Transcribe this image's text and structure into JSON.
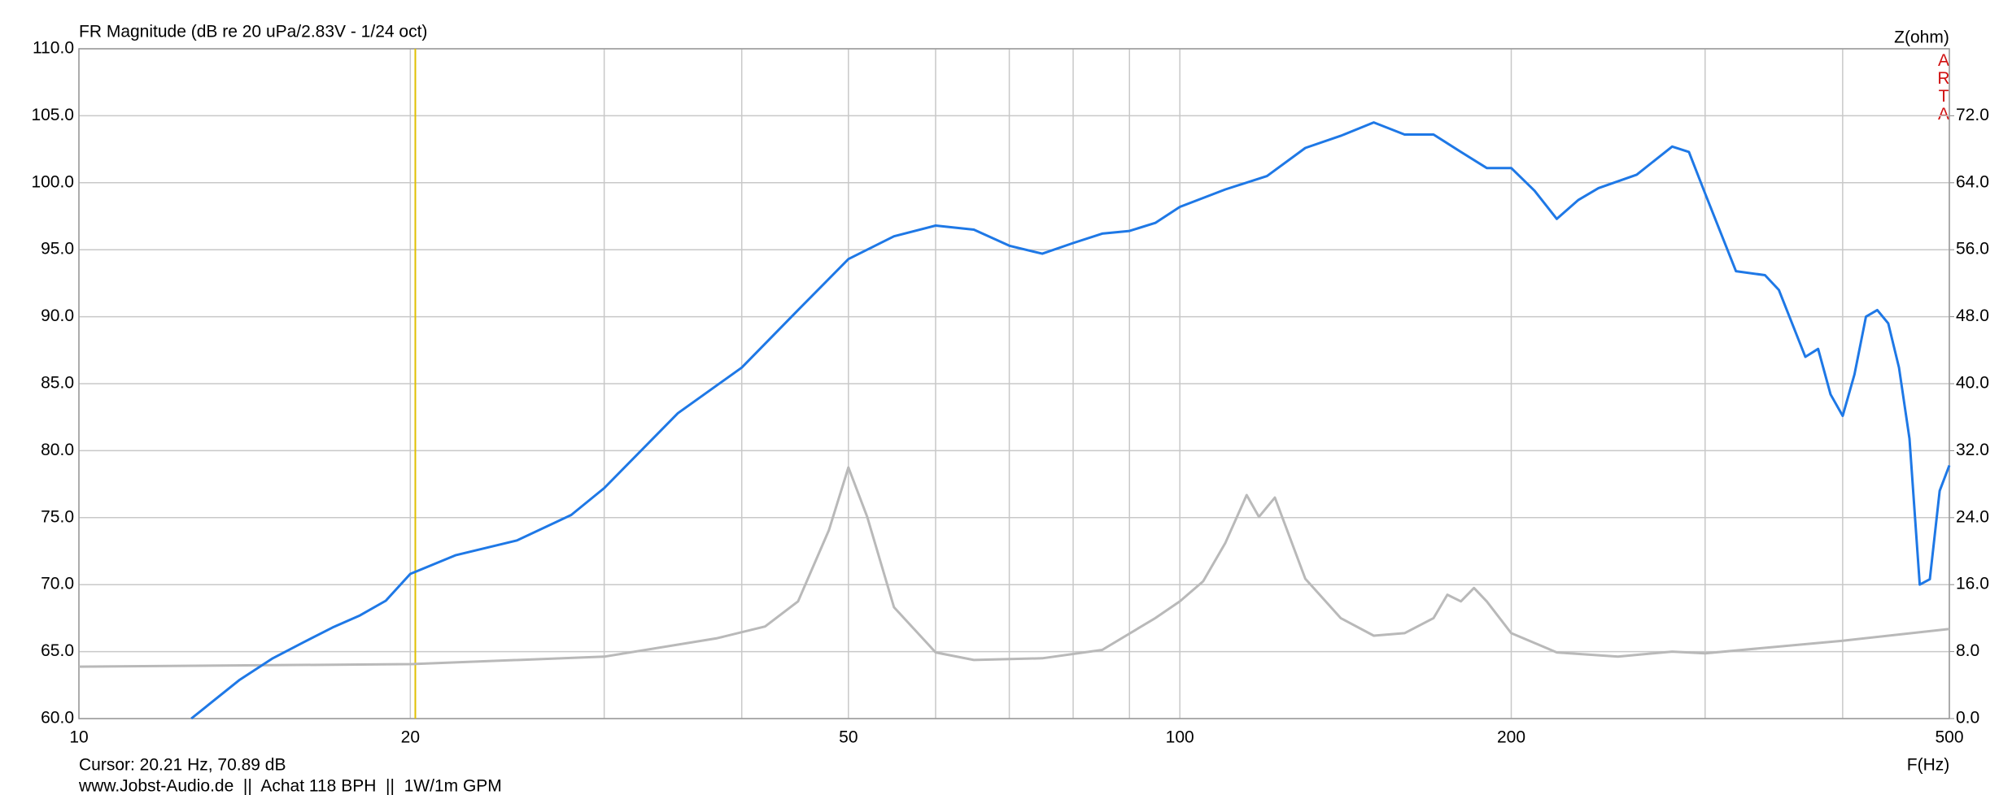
{
  "chart_data": {
    "type": "line",
    "title": "FR Magnitude (dB re 20 uPa/2.83V - 1/24 oct)",
    "y2label": "Z(ohm)",
    "xlabel": "F(Hz)",
    "watermark": "ARTA",
    "cursor_text": "Cursor: 20.21 Hz, 70.89 dB",
    "cursor_x": 20.21,
    "footer": "www.Jobst-Audio.de  ||  Achat 118 BPH  ||  1W/1m GPM",
    "xscale": "log",
    "grid": true,
    "xlim": [
      10,
      500
    ],
    "xticks": [
      10,
      20,
      50,
      100,
      200,
      500
    ],
    "xgrid_minor": [
      30,
      40,
      60,
      70,
      80,
      90,
      300,
      400
    ],
    "ylim": [
      60,
      110
    ],
    "yticks": [
      {
        "value": 60,
        "label": "60.0"
      },
      {
        "value": 65,
        "label": "65.0"
      },
      {
        "value": 70,
        "label": "70.0"
      },
      {
        "value": 75,
        "label": "75.0"
      },
      {
        "value": 80,
        "label": "80.0"
      },
      {
        "value": 85,
        "label": "85.0"
      },
      {
        "value": 90,
        "label": "90.0"
      },
      {
        "value": 95,
        "label": "95.0"
      },
      {
        "value": 100,
        "label": "100.0"
      },
      {
        "value": 105,
        "label": "105.0"
      },
      {
        "value": 110,
        "label": "110.0"
      }
    ],
    "y2lim": [
      0,
      80
    ],
    "y2ticks": [
      {
        "value": 0,
        "label": "0.0"
      },
      {
        "value": 8,
        "label": "8.0"
      },
      {
        "value": 16,
        "label": "16.0"
      },
      {
        "value": 24,
        "label": "24.0"
      },
      {
        "value": 32,
        "label": "32.0"
      },
      {
        "value": 40,
        "label": "40.0"
      },
      {
        "value": 48,
        "label": "48.0"
      },
      {
        "value": 56,
        "label": "56.0"
      },
      {
        "value": 64,
        "label": "64.0"
      },
      {
        "value": 72,
        "label": "72.0"
      }
    ],
    "series": [
      {
        "color": "#1e78e6",
        "x": [
          12.65,
          14,
          15,
          16,
          17,
          18,
          19,
          20,
          22,
          25,
          28,
          30,
          35,
          40,
          45,
          50,
          55,
          60,
          65,
          70,
          75,
          80,
          85,
          90,
          95,
          100,
          110,
          120,
          130,
          140,
          150,
          160,
          170,
          180,
          190,
          200,
          210,
          220,
          230,
          240,
          260,
          280,
          290,
          300,
          320,
          340,
          350,
          370,
          380,
          390,
          400,
          410,
          420,
          430,
          440,
          450,
          460,
          470,
          480,
          490,
          500
        ],
        "values": [
          60.0,
          62.9,
          64.5,
          65.7,
          66.8,
          67.7,
          68.8,
          70.8,
          72.2,
          73.3,
          75.2,
          77.2,
          82.8,
          86.2,
          90.5,
          94.3,
          96.0,
          96.8,
          96.5,
          95.3,
          94.7,
          95.5,
          96.2,
          96.4,
          97.0,
          98.2,
          99.5,
          100.5,
          102.6,
          103.5,
          104.5,
          103.6,
          103.6,
          102.3,
          101.1,
          101.1,
          99.4,
          97.3,
          98.7,
          99.6,
          100.6,
          102.7,
          102.3,
          99.2,
          93.4,
          93.1,
          92.0,
          87.0,
          87.6,
          84.2,
          82.6,
          85.7,
          90.0,
          90.5,
          89.5,
          86.2,
          80.9,
          70.0,
          70.4,
          77.0,
          78.9
        ]
      },
      {
        "color": "#b9b9b9",
        "axis": "y2",
        "x": [
          10,
          20,
          30,
          38,
          42,
          45,
          48,
          50,
          52,
          55,
          60,
          65,
          75,
          85,
          95,
          100,
          105,
          110,
          115,
          118,
          122,
          130,
          140,
          150,
          160,
          170,
          175,
          180,
          185,
          190,
          200,
          220,
          250,
          280,
          300,
          400,
          500
        ],
        "values": [
          6.2,
          6.5,
          7.4,
          9.6,
          11.0,
          14.0,
          22.5,
          30.0,
          24.1,
          13.3,
          7.9,
          7.0,
          7.2,
          8.2,
          12.0,
          14.0,
          16.4,
          21.0,
          26.7,
          24.1,
          26.4,
          16.7,
          12.0,
          9.9,
          10.2,
          12.0,
          14.8,
          14.0,
          15.6,
          14.0,
          10.2,
          7.9,
          7.4,
          8.0,
          7.8,
          9.3,
          10.7
        ]
      }
    ]
  }
}
